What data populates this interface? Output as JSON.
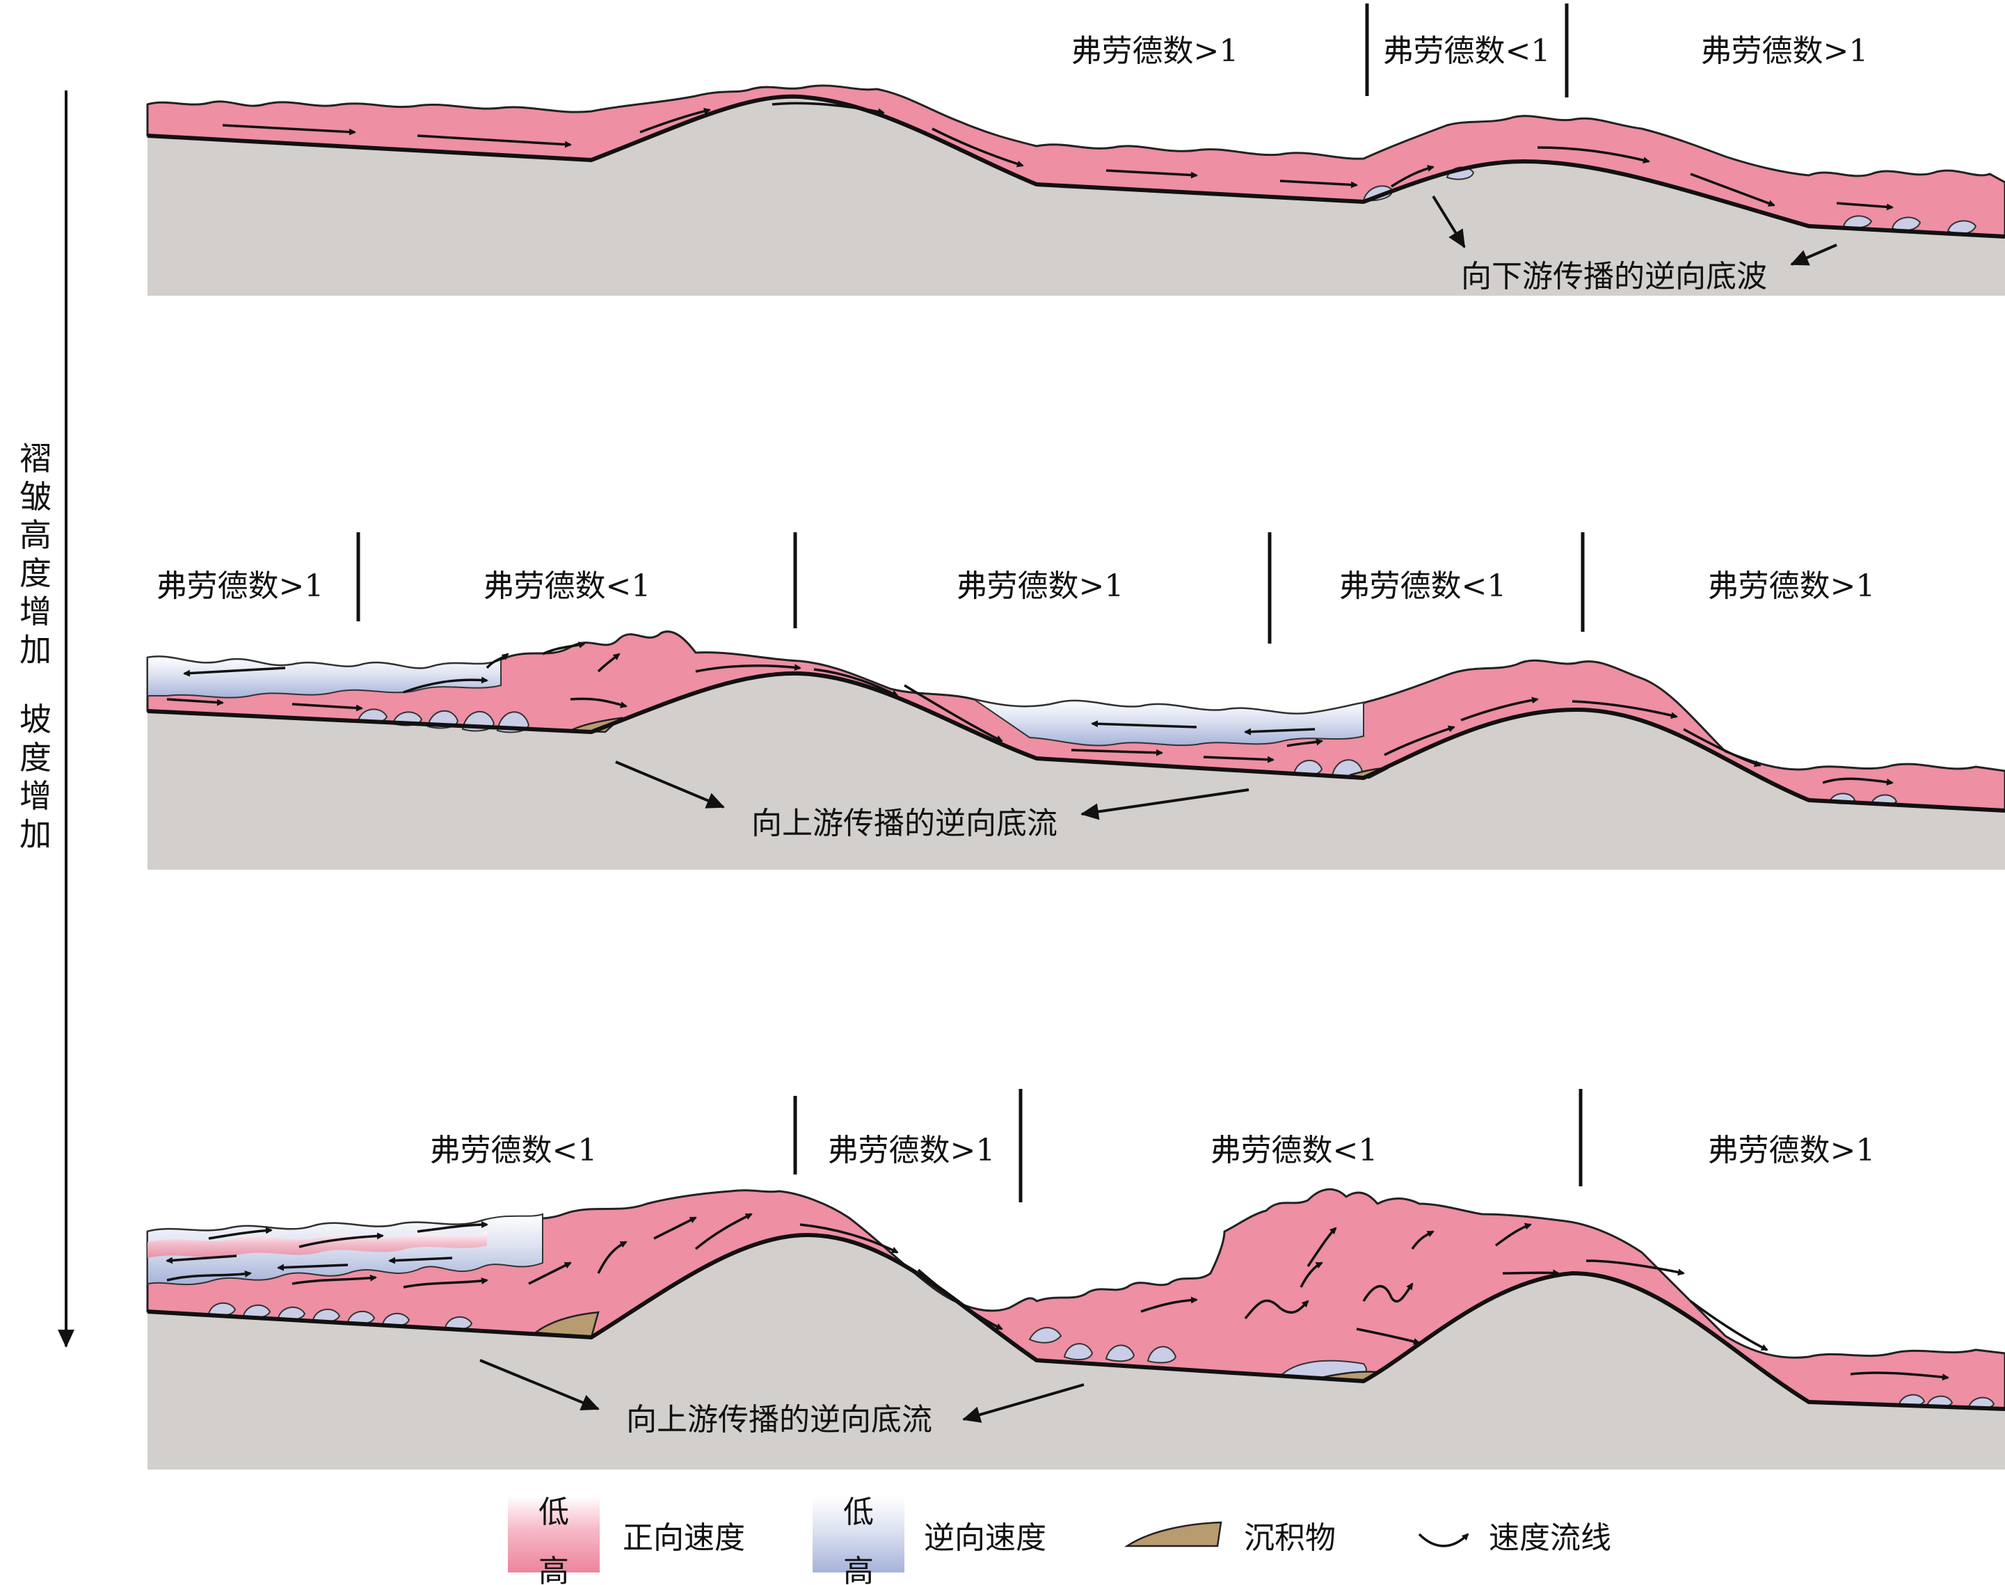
{
  "side_label": {
    "part1": [
      "褶",
      "皱",
      "高",
      "度",
      "增",
      "加"
    ],
    "part2": [
      "坡",
      "度",
      "增",
      "加"
    ]
  },
  "panel1": {
    "regimes": [
      "弗劳德数>1",
      "弗劳德数<1",
      "弗劳德数>1"
    ],
    "annotation": "向下游传播的逆向底波"
  },
  "panel2": {
    "regimes": [
      "弗劳德数>1",
      "弗劳德数<1",
      "弗劳德数>1",
      "弗劳德数<1",
      "弗劳德数>1"
    ],
    "annotation": "向上游传播的逆向底流"
  },
  "panel3": {
    "regimes": [
      "弗劳德数<1",
      "弗劳德数>1",
      "弗劳德数<1",
      "弗劳德数>1"
    ],
    "annotation": "向上游传播的逆向底流"
  },
  "legend": {
    "forward": {
      "low": "低",
      "high": "高",
      "label": "正向速度",
      "color": "#ee8fa3"
    },
    "reverse": {
      "low": "低",
      "high": "高",
      "label": "逆向速度",
      "color": "#b8c3e3"
    },
    "sediment": {
      "label": "沉积物",
      "color": "#b99b70"
    },
    "streamline": {
      "label": "速度流线"
    }
  }
}
